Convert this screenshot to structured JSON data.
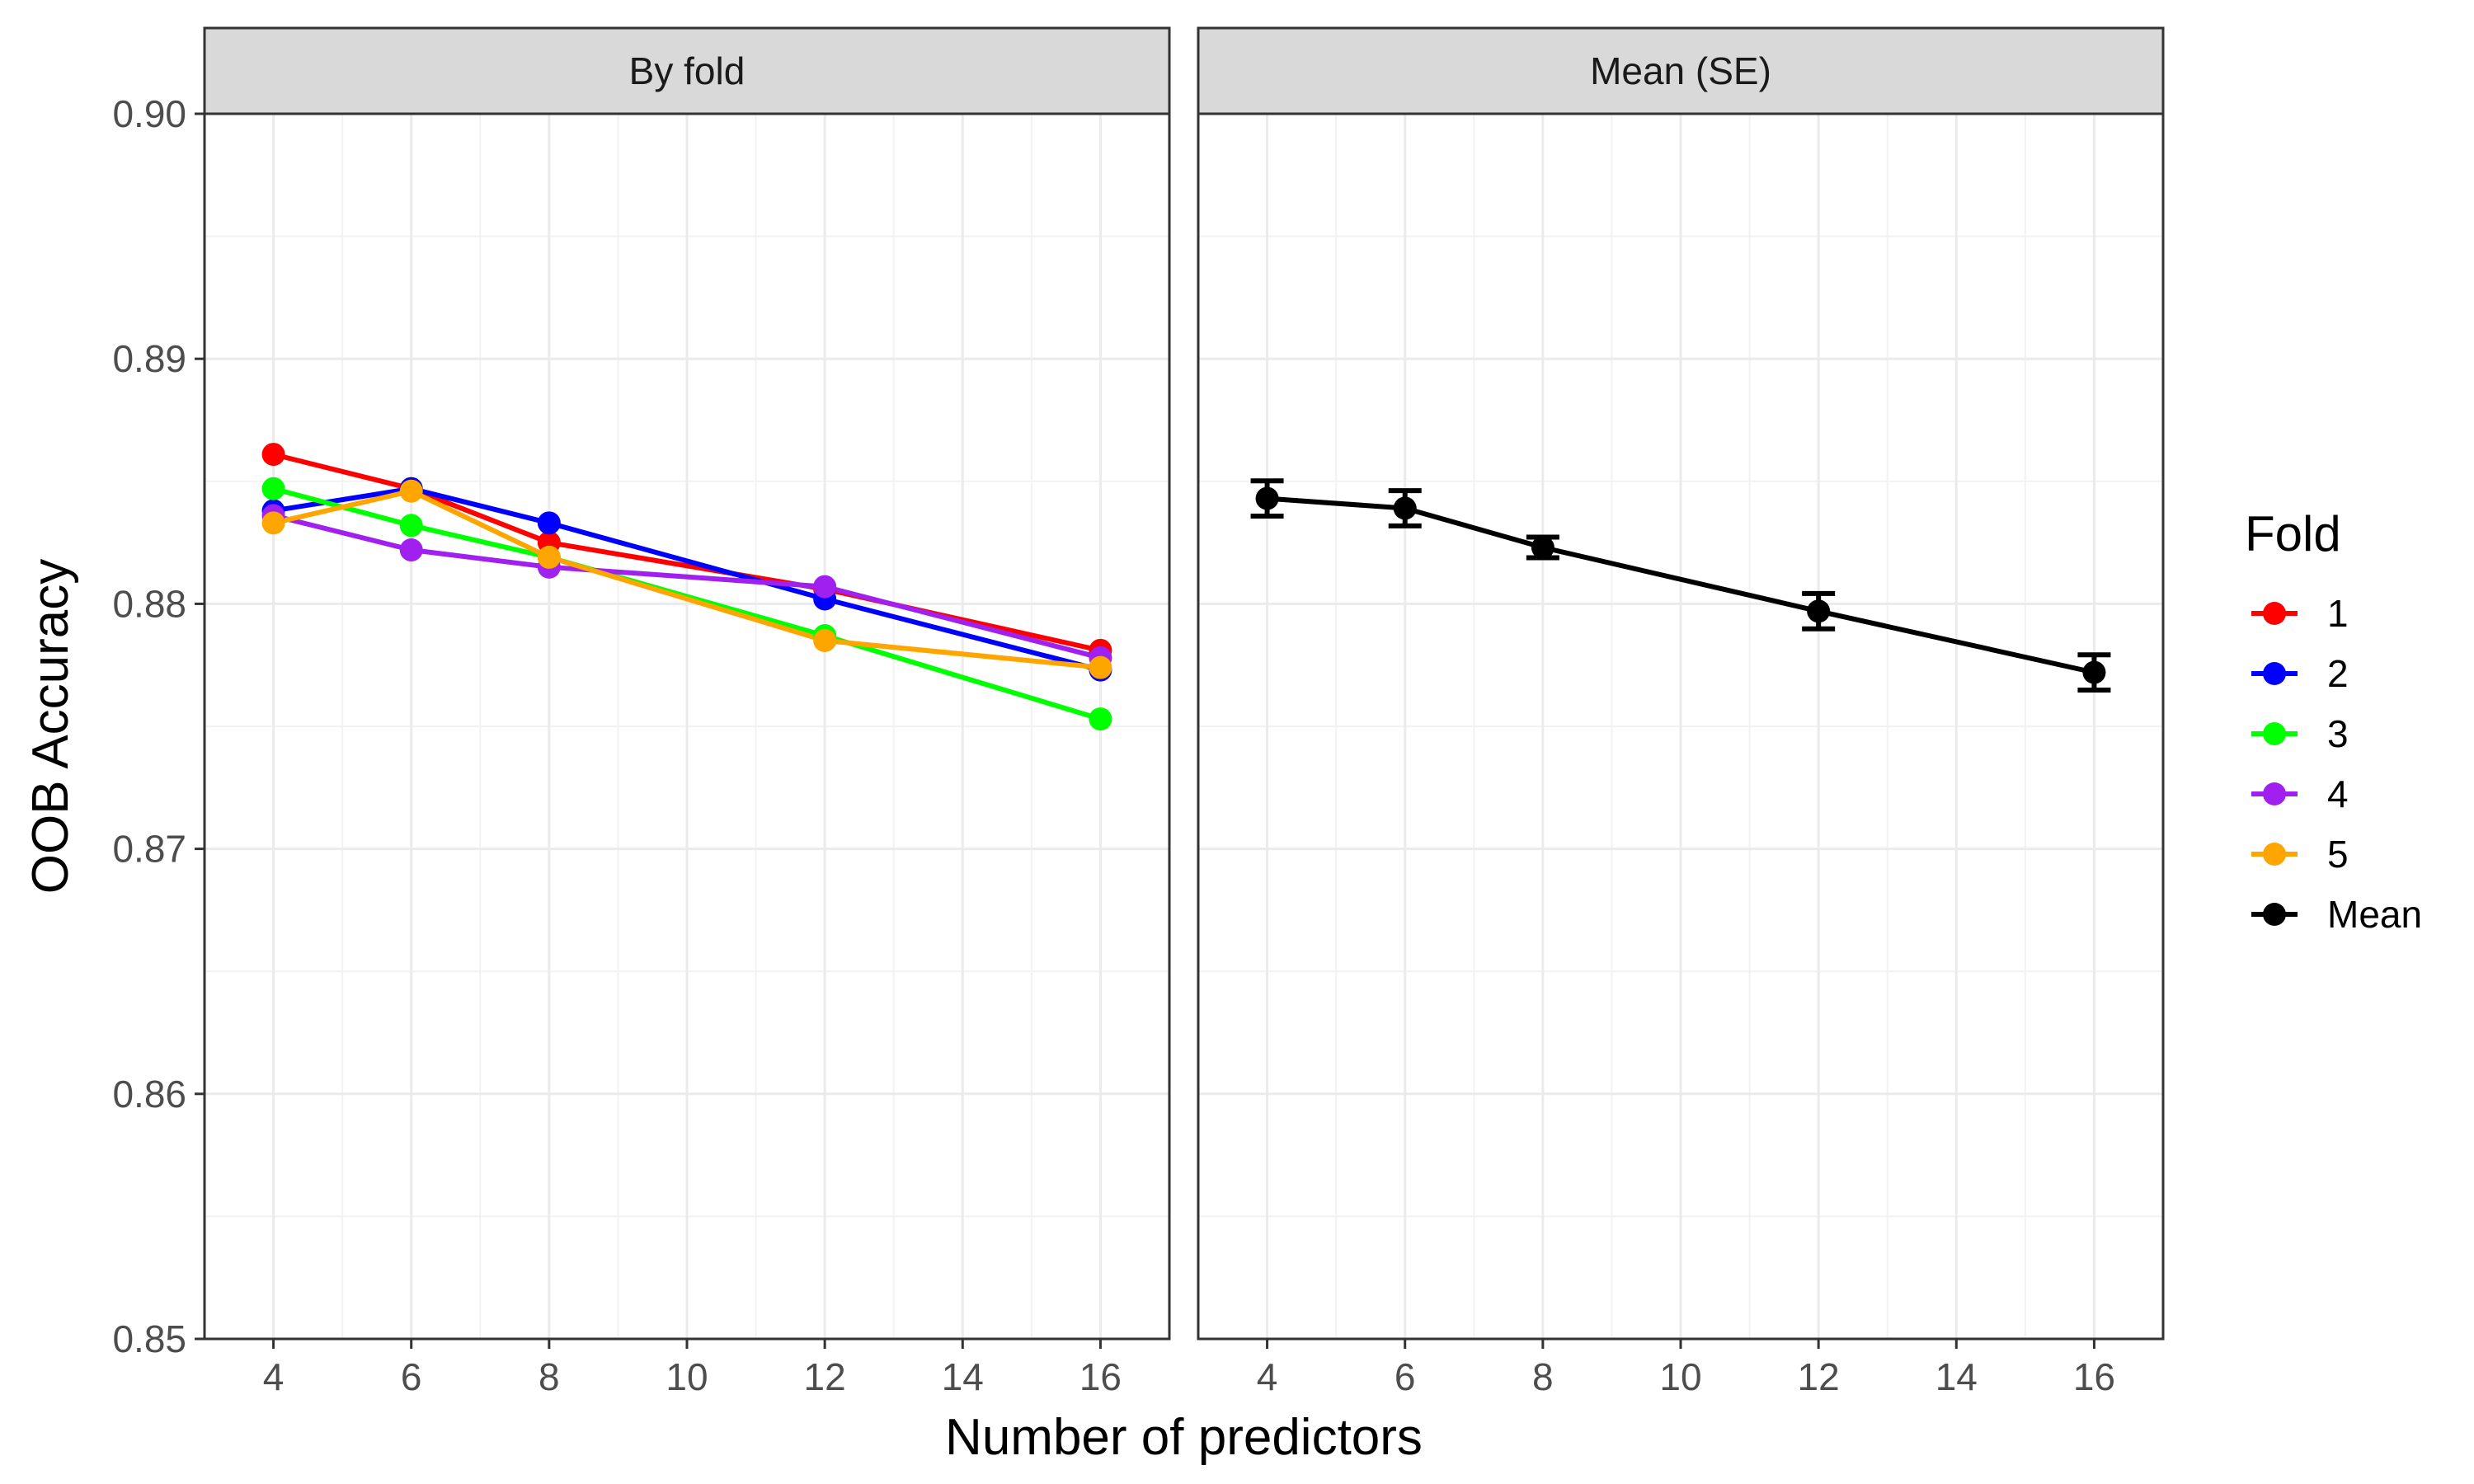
{
  "chart_data": {
    "type": "line",
    "xlabel": "Number of predictors",
    "ylabel": "OOB Accuracy",
    "xlim": [
      3,
      17
    ],
    "ylim": [
      0.85,
      0.9
    ],
    "xticks": [
      4,
      6,
      8,
      10,
      12,
      14,
      16
    ],
    "yticks": [
      0.85,
      0.86,
      0.87,
      0.88,
      0.89,
      0.9
    ],
    "ytick_labels": [
      "0.85",
      "0.86",
      "0.87",
      "0.88",
      "0.89",
      "0.90"
    ],
    "grid": true,
    "legend": {
      "title": "Fold",
      "placement": "right",
      "entries": [
        {
          "label": "1",
          "color": "#ff0000"
        },
        {
          "label": "2",
          "color": "#0000ff"
        },
        {
          "label": "3",
          "color": "#00ff00"
        },
        {
          "label": "4",
          "color": "#a020f0"
        },
        {
          "label": "5",
          "color": "#ffa500"
        },
        {
          "label": "Mean",
          "color": "#000000"
        }
      ]
    },
    "x": [
      4,
      6,
      8,
      12,
      16
    ],
    "panels": [
      {
        "title": "By fold",
        "series": [
          {
            "name": "1",
            "color": "#ff0000",
            "values": [
              0.8861,
              0.8847,
              0.8825,
              0.8806,
              0.8781
            ]
          },
          {
            "name": "2",
            "color": "#0000ff",
            "values": [
              0.8838,
              0.8847,
              0.8833,
              0.8802,
              0.8773
            ]
          },
          {
            "name": "3",
            "color": "#00ff00",
            "values": [
              0.8847,
              0.8832,
              0.8819,
              0.8787,
              0.8753
            ]
          },
          {
            "name": "4",
            "color": "#a020f0",
            "values": [
              0.8836,
              0.8822,
              0.8815,
              0.8807,
              0.8778
            ]
          },
          {
            "name": "5",
            "color": "#ffa500",
            "values": [
              0.8833,
              0.8846,
              0.8819,
              0.8785,
              0.8774
            ]
          }
        ]
      },
      {
        "title": "Mean (SE)",
        "series": [
          {
            "name": "Mean",
            "color": "#000000",
            "values": [
              0.8843,
              0.8839,
              0.8823,
              0.8797,
              0.8772
            ],
            "se": [
              0.00072,
              0.00072,
              0.00042,
              0.00072,
              0.00072
            ]
          }
        ]
      }
    ]
  }
}
